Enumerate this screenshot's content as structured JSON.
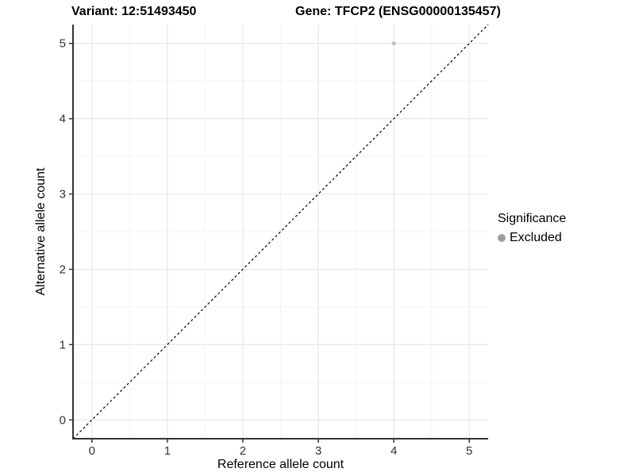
{
  "chart_data": {
    "type": "scatter",
    "titles": {
      "variant": "Variant: 12:51493450",
      "gene": "Gene: TFCP2 (ENSG00000135457)"
    },
    "xlabel": "Reference allele count",
    "ylabel": "Alternative allele count",
    "xlim": [
      -0.25,
      5.25
    ],
    "ylim": [
      -0.25,
      5.25
    ],
    "x_ticks": [
      0,
      1,
      2,
      3,
      4,
      5
    ],
    "y_ticks": [
      0,
      1,
      2,
      3,
      4,
      5
    ],
    "x_minor_ticks": [
      0.5,
      1.5,
      2.5,
      3.5,
      4.5
    ],
    "y_minor_ticks": [
      0.5,
      1.5,
      2.5,
      3.5,
      4.5
    ],
    "grid": true,
    "points": [
      {
        "x": 4,
        "y": 5,
        "significance": "Excluded",
        "color": "#bdbdbd"
      }
    ],
    "reference_line": {
      "type": "identity",
      "style": "dashed",
      "color": "#000000"
    },
    "legend": {
      "title": "Significance",
      "position": "right",
      "items": [
        {
          "label": "Excluded",
          "color": "#9e9e9e"
        }
      ]
    },
    "colors": {
      "background": "#ffffff",
      "grid_major": "#e8e8e8",
      "grid_minor": "#f4f4f4",
      "axis": "#333333",
      "tick_label": "#333333"
    }
  }
}
